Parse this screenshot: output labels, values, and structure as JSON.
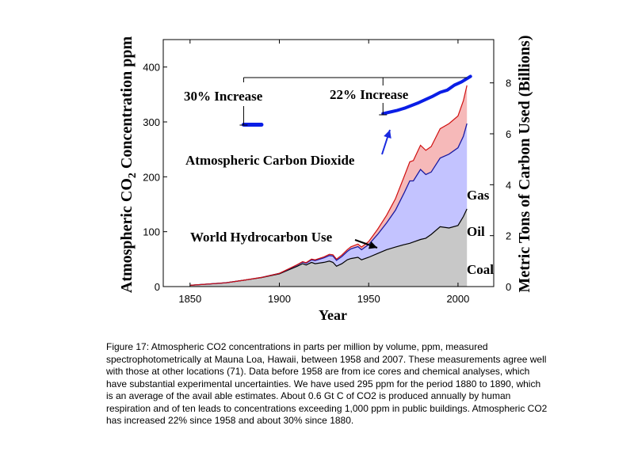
{
  "chart_data": {
    "type": "area",
    "xlabel": "Year",
    "ylabel_left": {
      "main": "Atmospheric CO",
      "sub": "2",
      "rest": " Concentration ppm"
    },
    "ylabel_right": "Metric Tons of Carbon Used (Billions)",
    "xlim": [
      1835,
      2020
    ],
    "ylim_left": [
      0,
      450
    ],
    "ylim_right": [
      0,
      9.7
    ],
    "x_ticks": [
      1850,
      1900,
      1950,
      2000
    ],
    "y_left_ticks": [
      0,
      100,
      200,
      300,
      400
    ],
    "y_right_ticks": [
      0,
      2,
      4,
      6,
      8
    ],
    "x_tick_labels": [
      "1850",
      "1900",
      "1950",
      "2000"
    ],
    "y_left_tick_labels": [
      "0",
      "100",
      "200",
      "300",
      "400"
    ],
    "y_right_tick_labels": [
      "0",
      "2",
      "4",
      "6",
      "8"
    ],
    "series_labels": [
      "Coal",
      "Oil",
      "Gas"
    ],
    "co2_series": {
      "name": "Atmospheric Carbon Dioxide",
      "color": "#0a1ee6",
      "early": {
        "x": [
          1880,
          1890
        ],
        "y": [
          295,
          295
        ]
      },
      "x": [
        1958,
        1962,
        1966,
        1970,
        1974,
        1978,
        1982,
        1986,
        1990,
        1994,
        1998,
        2002,
        2007
      ],
      "y": [
        315,
        318,
        321,
        325,
        330,
        335,
        341,
        347,
        354,
        358,
        367,
        373,
        383
      ]
    },
    "fuel_stack": {
      "x": [
        1850,
        1860,
        1870,
        1880,
        1890,
        1900,
        1905,
        1910,
        1913,
        1915,
        1918,
        1920,
        1925,
        1928,
        1930,
        1932,
        1935,
        1938,
        1940,
        1944,
        1946,
        1950,
        1955,
        1960,
        1965,
        1970,
        1973,
        1975,
        1979,
        1982,
        1985,
        1990,
        1995,
        2000,
        2003,
        2005
      ],
      "coal": [
        0.05,
        0.1,
        0.15,
        0.25,
        0.35,
        0.5,
        0.65,
        0.8,
        0.9,
        0.85,
        0.95,
        0.9,
        0.95,
        1.0,
        0.95,
        0.8,
        0.9,
        1.05,
        1.1,
        1.15,
        1.05,
        1.15,
        1.3,
        1.45,
        1.55,
        1.65,
        1.7,
        1.75,
        1.85,
        1.9,
        2.05,
        2.35,
        2.3,
        2.4,
        2.75,
        3.05
      ],
      "oil": [
        0.0,
        0.0,
        0.0,
        0.0,
        0.01,
        0.02,
        0.03,
        0.05,
        0.06,
        0.07,
        0.1,
        0.12,
        0.18,
        0.22,
        0.25,
        0.23,
        0.28,
        0.33,
        0.38,
        0.42,
        0.4,
        0.5,
        0.75,
        1.05,
        1.45,
        2.05,
        2.45,
        2.4,
        2.75,
        2.5,
        2.45,
        2.7,
        2.9,
        3.05,
        3.15,
        3.35
      ],
      "gas": [
        0.0,
        0.0,
        0.0,
        0.0,
        0.0,
        0.0,
        0.01,
        0.01,
        0.02,
        0.02,
        0.03,
        0.03,
        0.04,
        0.05,
        0.05,
        0.05,
        0.06,
        0.07,
        0.08,
        0.1,
        0.1,
        0.12,
        0.2,
        0.3,
        0.45,
        0.65,
        0.75,
        0.8,
        0.95,
        0.95,
        1.0,
        1.15,
        1.2,
        1.25,
        1.4,
        1.5
      ]
    },
    "colors": {
      "coal_fill": "#c8c8c8",
      "coal_line": "#000000",
      "oil_fill": "#c3c3ff",
      "oil_line": "#1a1aa0",
      "gas_fill": "#f6b9b9",
      "gas_line": "#d01010",
      "co2_line": "#0a1ee6",
      "arrow_blue": "#1a2ae0"
    },
    "annotations": {
      "increase_30": "30% Increase",
      "increase_22": "22% Increase",
      "co2_label": "Atmospheric Carbon Dioxide",
      "hydrocarbon_label": "World Hydrocarbon Use",
      "gas": "Gas",
      "oil": "Oil",
      "coal": "Coal"
    }
  },
  "caption": "Figure 17: Atmospheric CO2 concentrations in parts per million by volume, ppm, measured spectrophotometrically at Mauna Loa, Hawaii, between 1958 and 2007. These measurements agree well with those at other locations (71). Data before 1958 are from ice cores and chemical analyses, which have substantial experimental uncertainties. We have used 295 ppm for the period 1880 to 1890, which is an average of the avail able estimates. About 0.6 Gt C of CO2 is produced annually by human respiration and of ten leads to concentrations exceeding 1,000 ppm in public buildings. Atmospheric CO2 has increased 22% since 1958 and about 30% since 1880."
}
